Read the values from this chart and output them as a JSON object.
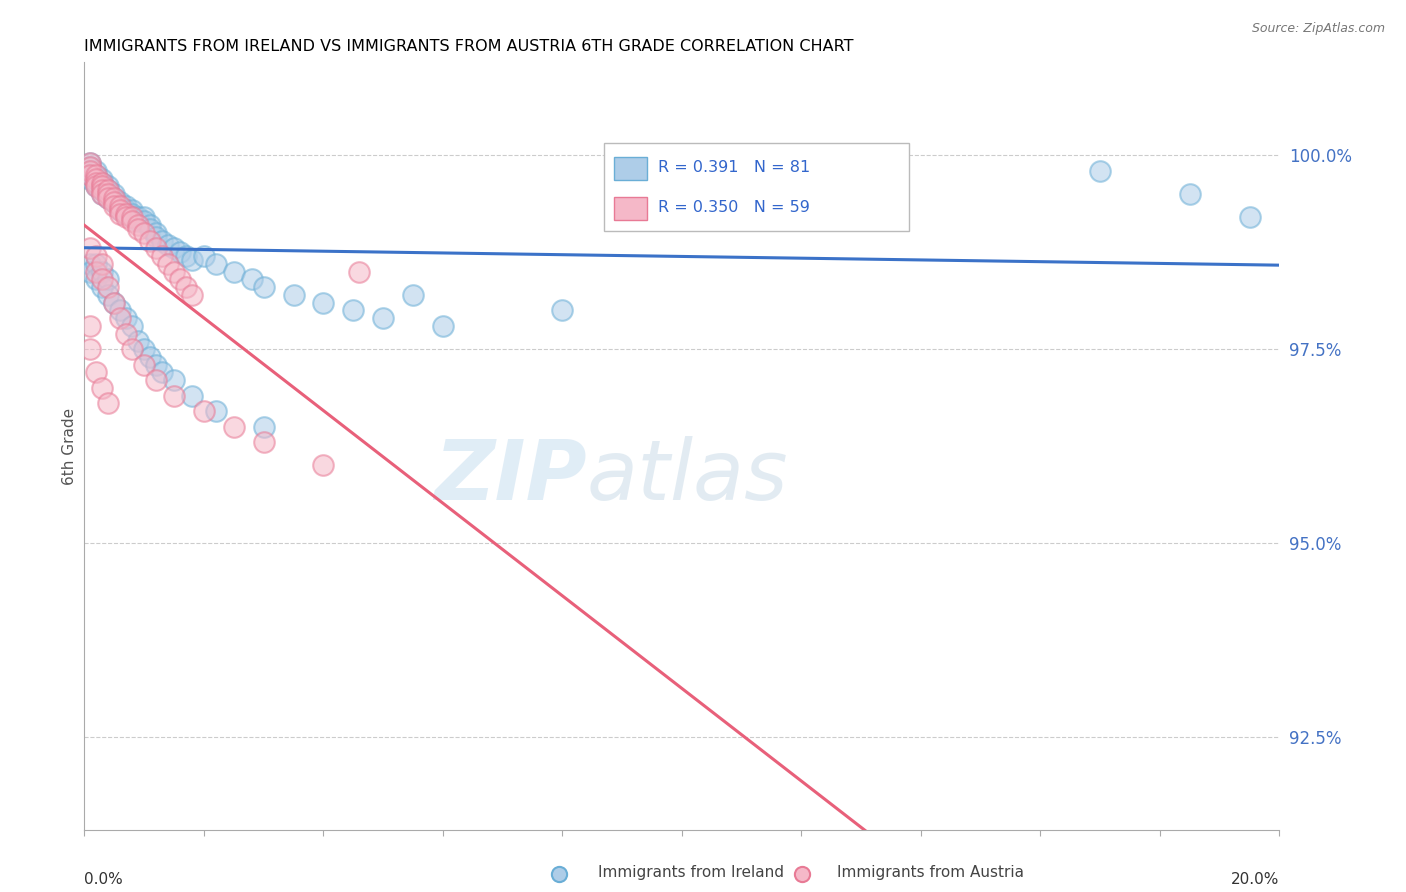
{
  "title": "IMMIGRANTS FROM IRELAND VS IMMIGRANTS FROM AUSTRIA 6TH GRADE CORRELATION CHART",
  "source": "Source: ZipAtlas.com",
  "ylabel": "6th Grade",
  "y_ticks": [
    92.5,
    95.0,
    97.5,
    100.0
  ],
  "y_tick_labels": [
    "92.5%",
    "95.0%",
    "97.5%",
    "100.0%"
  ],
  "x_range": [
    0.0,
    0.2
  ],
  "y_range": [
    91.3,
    101.2
  ],
  "ireland_R": 0.391,
  "ireland_N": 81,
  "austria_R": 0.35,
  "austria_N": 59,
  "ireland_color": "#aecde8",
  "austria_color": "#f5b8c8",
  "ireland_edge_color": "#6aaed6",
  "austria_edge_color": "#e87a95",
  "ireland_line_color": "#3b72c8",
  "austria_line_color": "#e8607a",
  "legend_ireland_fill": "#aecde8",
  "legend_ireland_edge": "#6aaed6",
  "legend_austria_fill": "#f5b8c8",
  "legend_austria_edge": "#e87a95",
  "ireland_x": [
    0.001,
    0.001,
    0.001,
    0.001,
    0.001,
    0.002,
    0.002,
    0.002,
    0.002,
    0.002,
    0.003,
    0.003,
    0.003,
    0.003,
    0.003,
    0.004,
    0.004,
    0.004,
    0.004,
    0.005,
    0.005,
    0.005,
    0.006,
    0.006,
    0.006,
    0.007,
    0.007,
    0.007,
    0.008,
    0.008,
    0.008,
    0.009,
    0.009,
    0.01,
    0.01,
    0.011,
    0.011,
    0.012,
    0.012,
    0.013,
    0.014,
    0.015,
    0.016,
    0.017,
    0.018,
    0.02,
    0.022,
    0.025,
    0.028,
    0.03,
    0.035,
    0.04,
    0.045,
    0.05,
    0.06,
    0.001,
    0.001,
    0.002,
    0.002,
    0.003,
    0.003,
    0.004,
    0.004,
    0.005,
    0.006,
    0.007,
    0.008,
    0.009,
    0.01,
    0.011,
    0.012,
    0.013,
    0.015,
    0.018,
    0.022,
    0.03,
    0.055,
    0.08,
    0.17,
    0.185,
    0.195
  ],
  "ireland_y": [
    99.9,
    99.85,
    99.8,
    99.75,
    99.7,
    99.8,
    99.75,
    99.7,
    99.65,
    99.6,
    99.7,
    99.65,
    99.6,
    99.55,
    99.5,
    99.6,
    99.55,
    99.5,
    99.45,
    99.5,
    99.45,
    99.4,
    99.4,
    99.35,
    99.3,
    99.35,
    99.3,
    99.25,
    99.3,
    99.25,
    99.2,
    99.2,
    99.15,
    99.2,
    99.15,
    99.1,
    99.05,
    99.0,
    98.95,
    98.9,
    98.85,
    98.8,
    98.75,
    98.7,
    98.65,
    98.7,
    98.6,
    98.5,
    98.4,
    98.3,
    98.2,
    98.1,
    98.0,
    97.9,
    97.8,
    98.6,
    98.5,
    98.6,
    98.4,
    98.5,
    98.3,
    98.4,
    98.2,
    98.1,
    98.0,
    97.9,
    97.8,
    97.6,
    97.5,
    97.4,
    97.3,
    97.2,
    97.1,
    96.9,
    96.7,
    96.5,
    98.2,
    98.0,
    99.8,
    99.5,
    99.2
  ],
  "austria_x": [
    0.001,
    0.001,
    0.001,
    0.001,
    0.002,
    0.002,
    0.002,
    0.002,
    0.003,
    0.003,
    0.003,
    0.003,
    0.004,
    0.004,
    0.004,
    0.005,
    0.005,
    0.005,
    0.006,
    0.006,
    0.006,
    0.007,
    0.007,
    0.008,
    0.008,
    0.009,
    0.009,
    0.01,
    0.011,
    0.012,
    0.013,
    0.014,
    0.015,
    0.016,
    0.017,
    0.018,
    0.001,
    0.002,
    0.002,
    0.003,
    0.003,
    0.004,
    0.005,
    0.006,
    0.007,
    0.008,
    0.01,
    0.012,
    0.015,
    0.02,
    0.025,
    0.03,
    0.04,
    0.001,
    0.001,
    0.002,
    0.003,
    0.004,
    0.046
  ],
  "austria_y": [
    99.9,
    99.85,
    99.8,
    99.75,
    99.75,
    99.7,
    99.65,
    99.6,
    99.65,
    99.6,
    99.55,
    99.5,
    99.55,
    99.5,
    99.45,
    99.45,
    99.4,
    99.35,
    99.35,
    99.3,
    99.25,
    99.25,
    99.2,
    99.2,
    99.15,
    99.1,
    99.05,
    99.0,
    98.9,
    98.8,
    98.7,
    98.6,
    98.5,
    98.4,
    98.3,
    98.2,
    98.8,
    98.7,
    98.5,
    98.6,
    98.4,
    98.3,
    98.1,
    97.9,
    97.7,
    97.5,
    97.3,
    97.1,
    96.9,
    96.7,
    96.5,
    96.3,
    96.0,
    97.8,
    97.5,
    97.2,
    97.0,
    96.8,
    98.5
  ]
}
